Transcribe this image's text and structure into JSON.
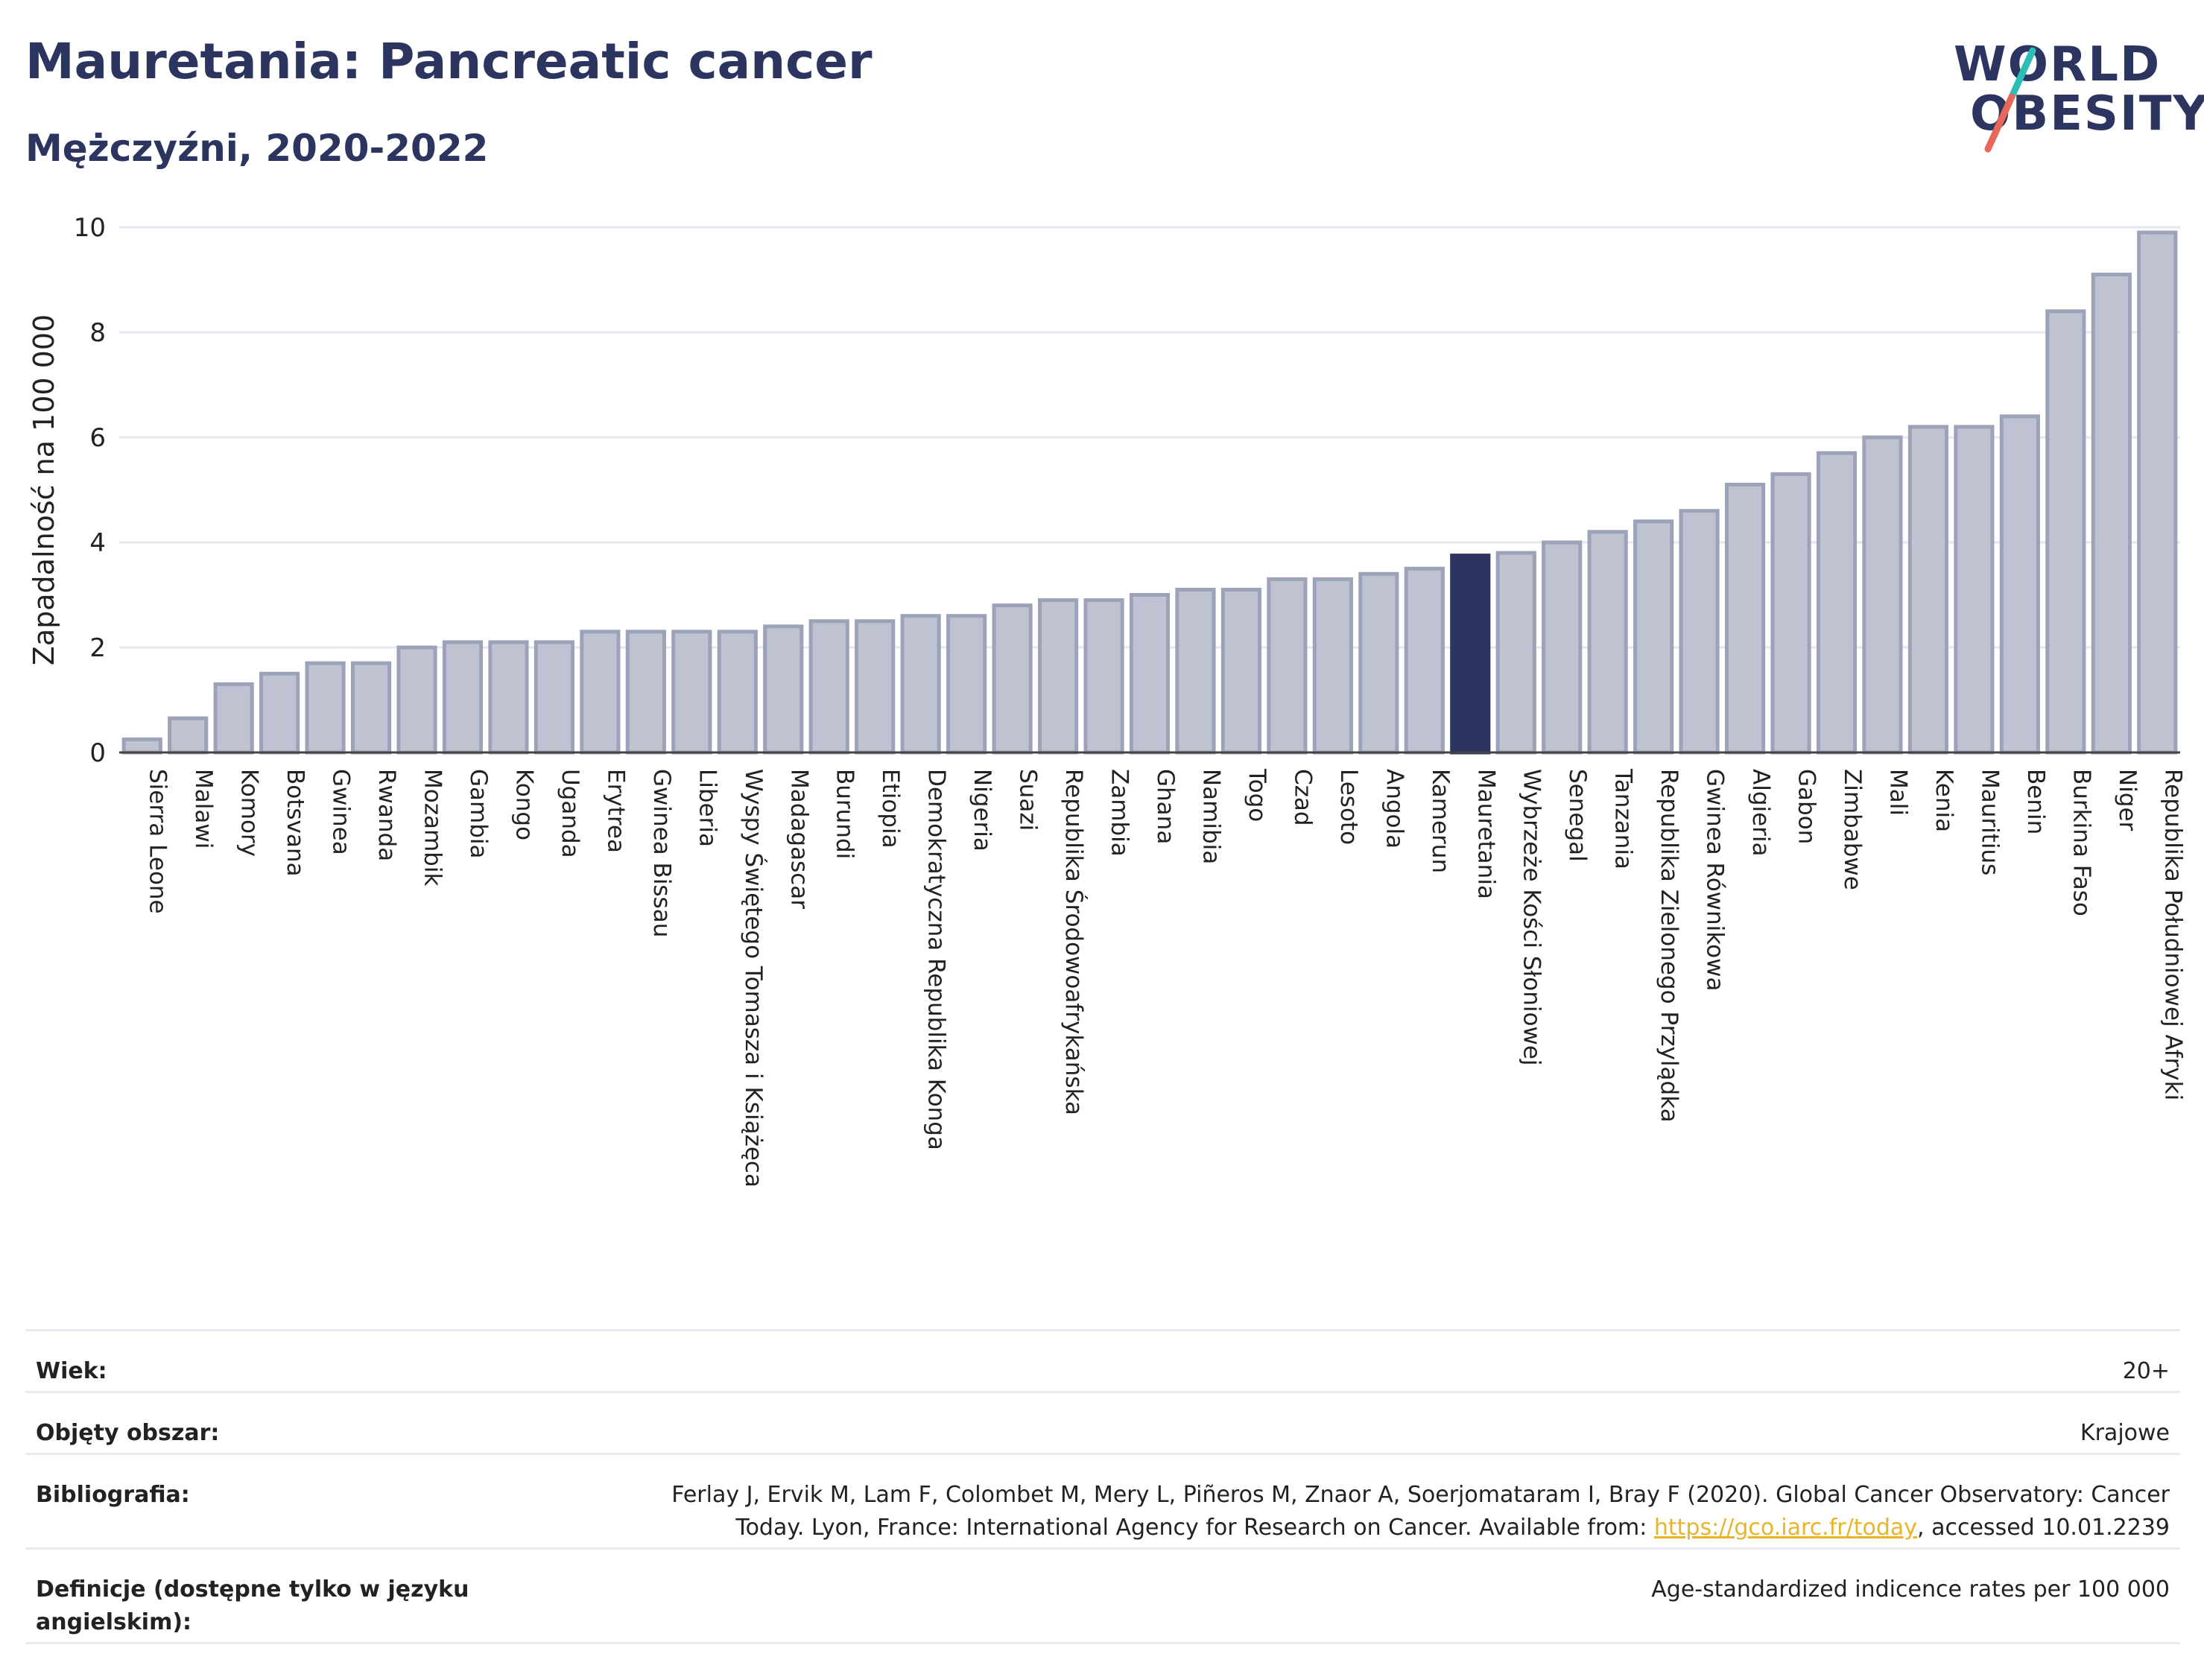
{
  "header": {
    "title": "Mauretania: Pancreatic cancer",
    "subtitle": "Mężczyźni, 2020-2022"
  },
  "logo": {
    "line1": "WORLD",
    "line2": "OBESITY",
    "colors": {
      "navy": "#2b3560",
      "teal": "#2bbfb5",
      "coral": "#e8665a"
    }
  },
  "colors": {
    "bar": "#bfc3d1",
    "bar_edge": "#9ca2b8",
    "highlight": "#2b3560",
    "grid": "#e5e7ee"
  },
  "chart_data": {
    "type": "bar",
    "ylabel": "Zapadalność na 100 000",
    "ylim": [
      0,
      10
    ],
    "yticks": [
      0,
      2,
      4,
      6,
      8,
      10
    ],
    "highlight": "Mauretania",
    "categories": [
      "Sierra Leone",
      "Malawi",
      "Komory",
      "Botsvana",
      "Gwinea",
      "Rwanda",
      "Mozambik",
      "Gambia",
      "Kongo",
      "Uganda",
      "Erytrea",
      "Gwinea Bissau",
      "Liberia",
      "Wyspy Świętego Tomasza i Książęca",
      "Madagascar",
      "Burundi",
      "Etiopia",
      "Demokratyczna Republika Konga",
      "Nigeria",
      "Suazi",
      "Republika Środowoafrykańska",
      "Zambia",
      "Ghana",
      "Namibia",
      "Togo",
      "Czad",
      "Lesoto",
      "Angola",
      "Kamerun",
      "Mauretania",
      "Wybrzeże Kości Słoniowej",
      "Senegal",
      "Tanzania",
      "Republika Zielonego Przylądka",
      "Gwinea Równikowa",
      "Algieria",
      "Gabon",
      "Zimbabwe",
      "Mali",
      "Kenia",
      "Mauritius",
      "Benin",
      "Burkina Faso",
      "Niger",
      "Republika Południowej Afryki"
    ],
    "values": [
      0.25,
      0.65,
      1.3,
      1.5,
      1.7,
      1.7,
      2.0,
      2.1,
      2.1,
      2.1,
      2.3,
      2.3,
      2.3,
      2.3,
      2.4,
      2.5,
      2.5,
      2.6,
      2.6,
      2.8,
      2.9,
      2.9,
      3.0,
      3.1,
      3.1,
      3.3,
      3.3,
      3.4,
      3.5,
      3.75,
      3.8,
      4.0,
      4.2,
      4.4,
      4.6,
      5.1,
      5.3,
      5.7,
      6.0,
      6.2,
      6.2,
      6.4,
      8.4,
      9.1,
      9.9
    ]
  },
  "footer": {
    "age_label": "Wiek:",
    "age_value": "20+",
    "area_label": "Objęty obszar:",
    "area_value": "Krajowe",
    "bib_label": "Bibliografia:",
    "bib_line1": "Ferlay J, Ervik M, Lam F, Colombet M, Mery L, Piñeros M, Znaor A, Soerjomataram I, Bray F (2020). Global Cancer Observatory: Cancer",
    "bib_line2_pre": "Today. Lyon, France: International Agency for Research on Cancer. Available from: ",
    "bib_link": "https://gco.iarc.fr/today",
    "bib_line2_post": ", accessed 10.01.2239",
    "def_label": "Definicje (dostępne tylko w języku angielskim):",
    "def_value": "Age-standardized indicence rates per 100 000"
  }
}
